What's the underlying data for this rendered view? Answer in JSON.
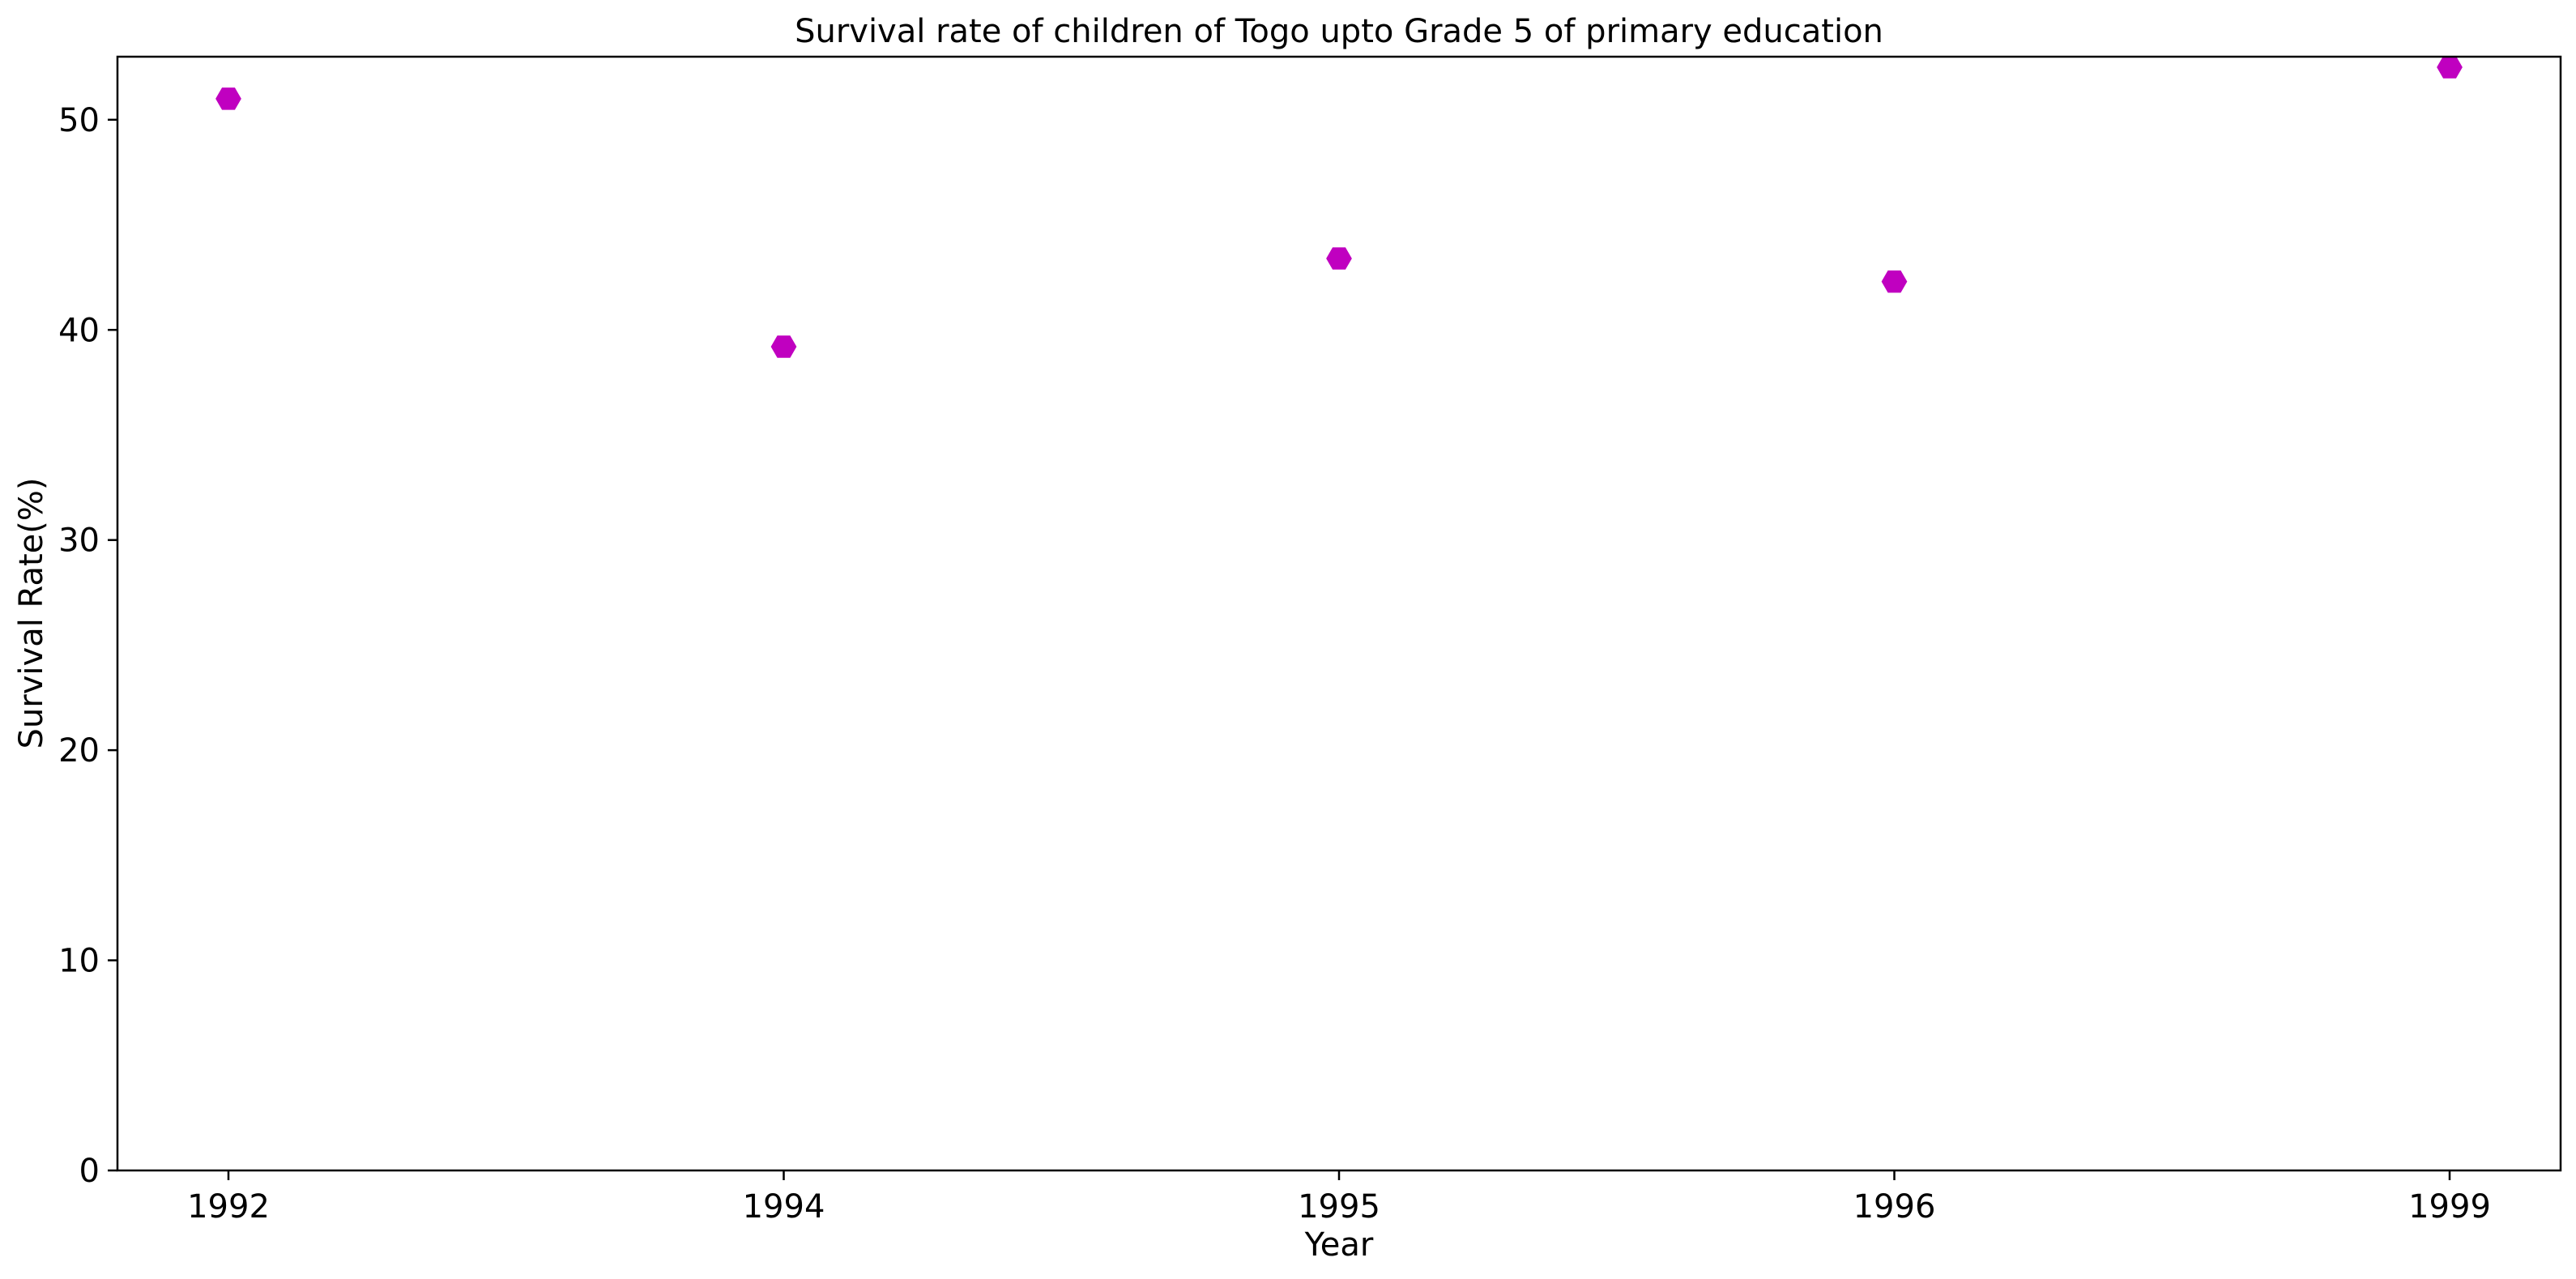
{
  "chart_data": {
    "type": "scatter",
    "title": "Survival rate of children of Togo upto Grade 5 of primary education",
    "xlabel": "Year",
    "ylabel": "Survival Rate(%)",
    "categories": [
      "1992",
      "1994",
      "1995",
      "1996",
      "1999"
    ],
    "values": [
      51.0,
      39.2,
      43.4,
      42.3,
      52.5
    ],
    "y_ticks": [
      "0",
      "10",
      "20",
      "30",
      "40",
      "50"
    ],
    "ylim": [
      0,
      53
    ],
    "grid": false,
    "marker": "hexagon",
    "marker_color": "#c000c0"
  }
}
